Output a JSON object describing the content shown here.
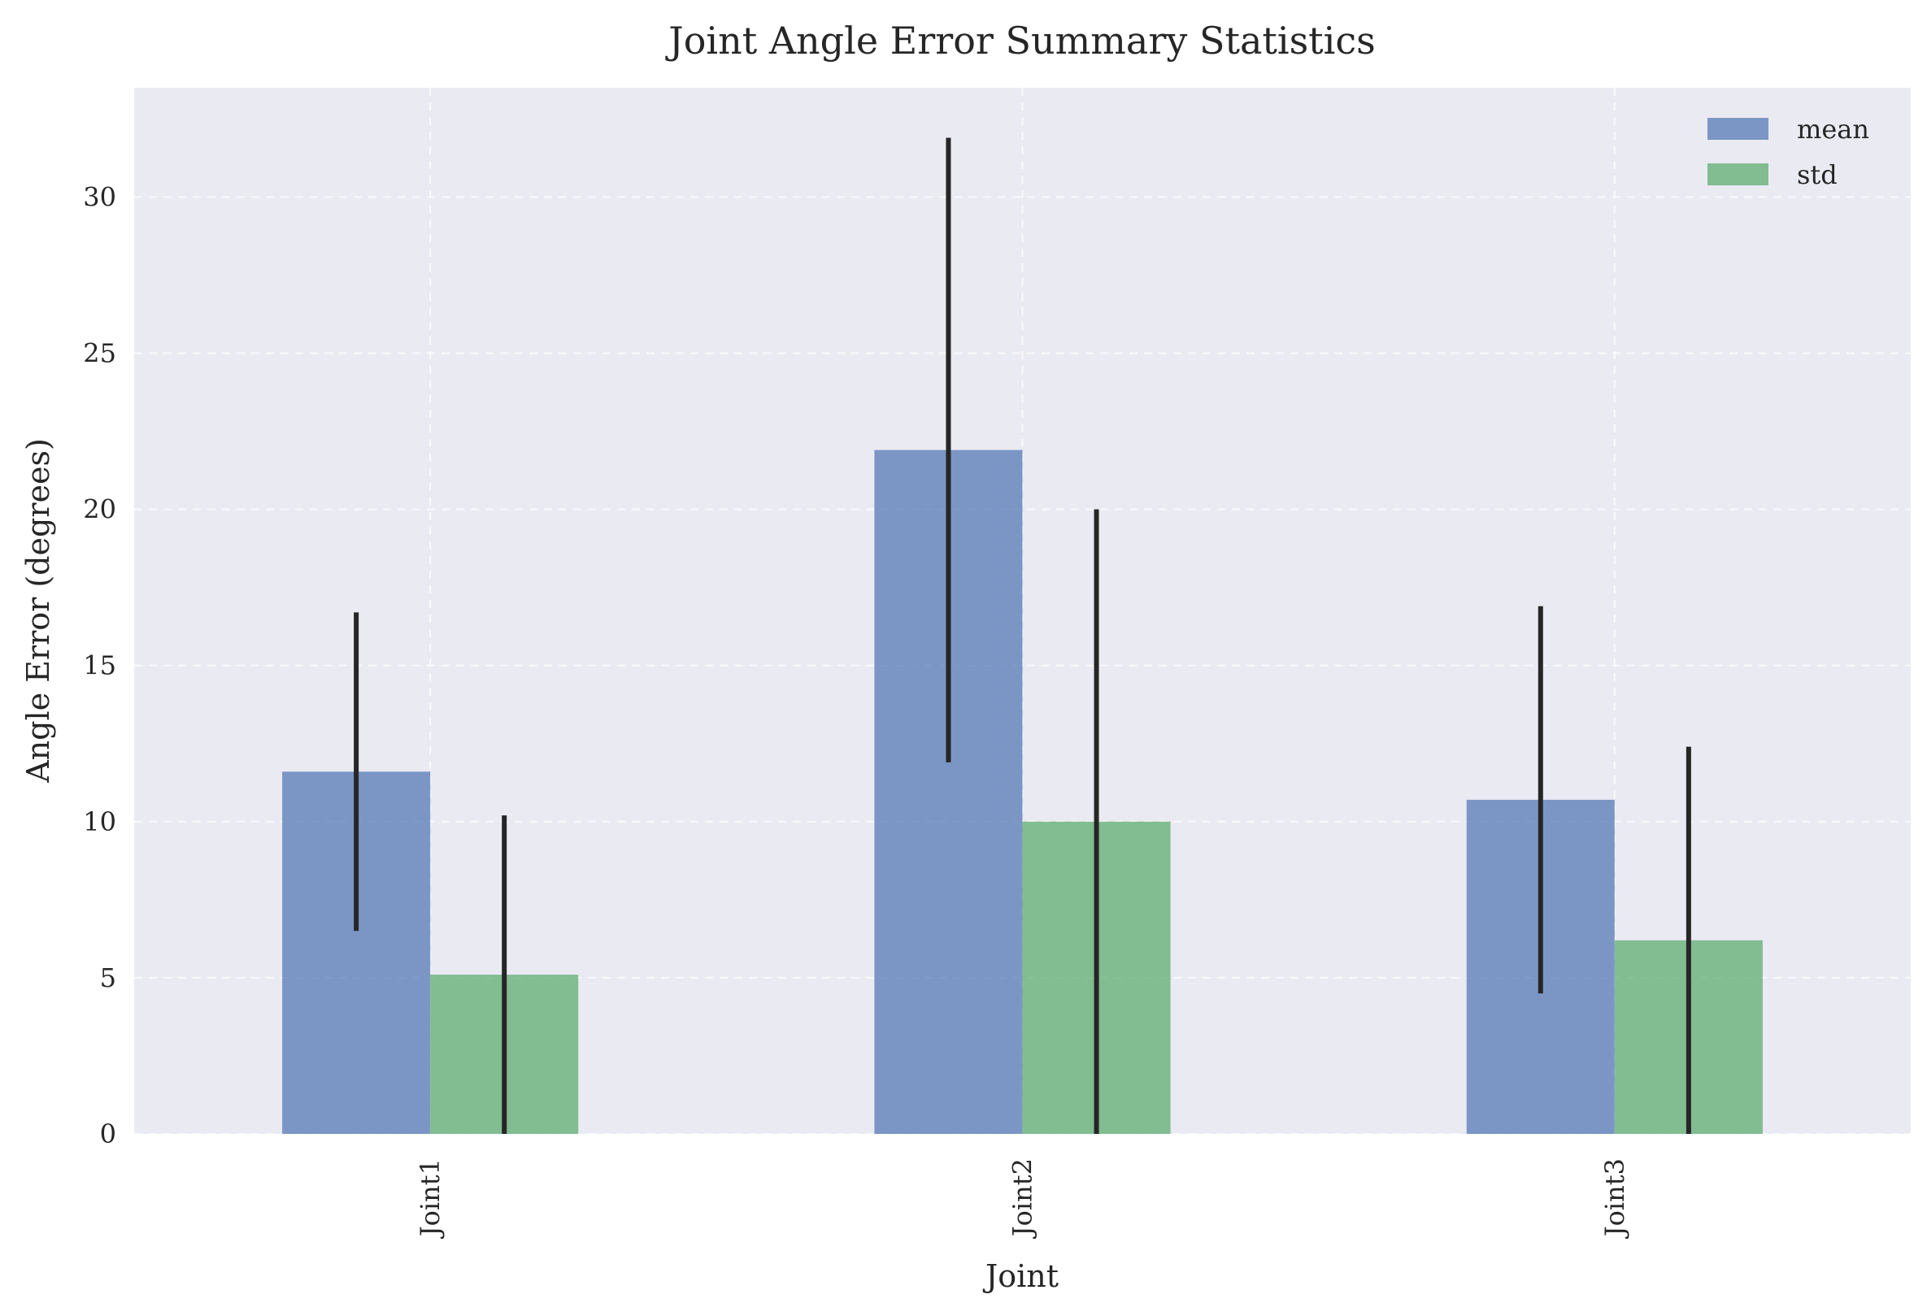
{
  "chart_data": {
    "type": "bar",
    "title": "Joint Angle Error Summary Statistics",
    "xlabel": "Joint",
    "ylabel": "Angle Error (degrees)",
    "categories": [
      "Joint1",
      "Joint2",
      "Joint3"
    ],
    "ylim": [
      0,
      33.5
    ],
    "yticks": [
      0,
      5,
      10,
      15,
      20,
      25,
      30
    ],
    "grid": true,
    "legend_position": "top-right",
    "series": [
      {
        "name": "mean",
        "values": [
          11.6,
          21.9,
          10.7
        ],
        "errors": [
          5.1,
          10.0,
          6.2
        ],
        "color": "#4c72b0"
      },
      {
        "name": "std",
        "values": [
          5.1,
          10.0,
          6.2
        ],
        "errors": [
          5.1,
          10.0,
          6.2
        ],
        "color": "#55a868"
      }
    ],
    "background": "#eaeaf2",
    "error_bar_color": "#262626"
  }
}
